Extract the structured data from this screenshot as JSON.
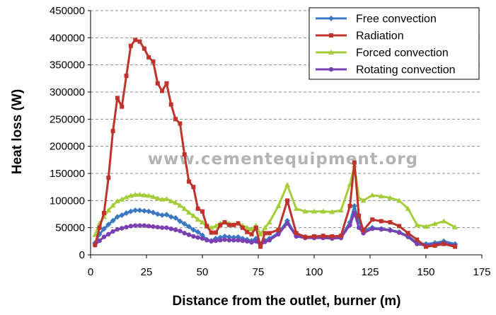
{
  "chart_data": {
    "type": "line",
    "title": "",
    "xlabel": "Distance from the outlet, burner (m)",
    "ylabel": "Heat loss (W)",
    "xlim": [
      0,
      175
    ],
    "ylim": [
      0,
      450000
    ],
    "xticks": [
      "0",
      "25",
      "50",
      "75",
      "100",
      "125",
      "150",
      "175"
    ],
    "yticks": [
      "0",
      "50000",
      "100000",
      "150000",
      "200000",
      "250000",
      "300000",
      "350000",
      "400000",
      "450000"
    ],
    "grid": "horizontal dashed",
    "legend_position": "top-right",
    "watermark": "www.cementequipment.org",
    "series": [
      {
        "name": "Free convection",
        "color": "#3b78c4",
        "marker": "diamond",
        "x": [
          2,
          4,
          6,
          8,
          10,
          12,
          14,
          16,
          18,
          20,
          22,
          24,
          26,
          28,
          30,
          32,
          34,
          36,
          38,
          40,
          42,
          44,
          46,
          48,
          50,
          52,
          54,
          56,
          58,
          60,
          62,
          64,
          66,
          68,
          70,
          72,
          74,
          76,
          78,
          80,
          84,
          88,
          92,
          96,
          100,
          104,
          108,
          112,
          116,
          118,
          120,
          122,
          126,
          130,
          134,
          138,
          142,
          146,
          150,
          154,
          158,
          163
        ],
        "y": [
          22000,
          38000,
          48000,
          56000,
          63000,
          70000,
          73000,
          77000,
          80000,
          82000,
          82000,
          81000,
          80000,
          78000,
          75000,
          73000,
          74000,
          70000,
          68000,
          62000,
          57000,
          52000,
          46000,
          42000,
          36000,
          28000,
          26000,
          30000,
          32000,
          34000,
          33000,
          32000,
          33000,
          30000,
          28000,
          26000,
          30000,
          20000,
          26000,
          30000,
          40000,
          63000,
          35000,
          33000,
          33000,
          33000,
          32000,
          33000,
          60000,
          90000,
          62000,
          45000,
          50000,
          48000,
          46000,
          42000,
          35000,
          22000,
          20000,
          22000,
          25000,
          20000
        ]
      },
      {
        "name": "Radiation",
        "color": "#c0332d",
        "marker": "square",
        "x": [
          2,
          4,
          6,
          8,
          10,
          12,
          14,
          16,
          18,
          20,
          22,
          24,
          26,
          28,
          30,
          32,
          34,
          36,
          38,
          40,
          42,
          44,
          46,
          48,
          50,
          52,
          54,
          56,
          58,
          60,
          62,
          64,
          66,
          68,
          70,
          72,
          74,
          76,
          78,
          80,
          84,
          88,
          92,
          96,
          100,
          104,
          108,
          112,
          116,
          118,
          120,
          122,
          126,
          130,
          134,
          138,
          142,
          146,
          150,
          154,
          158,
          163
        ],
        "y": [
          18000,
          50000,
          77000,
          142000,
          228000,
          289000,
          273000,
          330000,
          385000,
          396000,
          393000,
          380000,
          364000,
          356000,
          316000,
          302000,
          316000,
          277000,
          250000,
          242000,
          185000,
          135000,
          125000,
          85000,
          80000,
          53000,
          41000,
          41000,
          55000,
          60000,
          55000,
          55000,
          58000,
          50000,
          42000,
          38000,
          50000,
          15000,
          40000,
          40000,
          46000,
          100000,
          40000,
          33000,
          34000,
          35000,
          34000,
          35000,
          90000,
          170000,
          72000,
          45000,
          65000,
          62000,
          60000,
          53000,
          40000,
          28000,
          15000,
          17000,
          20000,
          15000
        ]
      },
      {
        "name": "Forced convection",
        "color": "#a4cd3a",
        "marker": "triangle",
        "x": [
          2,
          4,
          6,
          8,
          10,
          12,
          14,
          16,
          18,
          20,
          22,
          24,
          26,
          28,
          30,
          32,
          34,
          36,
          38,
          40,
          42,
          44,
          46,
          48,
          50,
          52,
          54,
          56,
          58,
          60,
          62,
          64,
          66,
          68,
          70,
          72,
          74,
          76,
          78,
          80,
          84,
          88,
          92,
          96,
          100,
          104,
          108,
          112,
          116,
          118,
          120,
          122,
          126,
          130,
          134,
          138,
          142,
          146,
          150,
          154,
          158,
          163
        ],
        "y": [
          37000,
          58000,
          70000,
          82000,
          91000,
          99000,
          102000,
          106000,
          109000,
          111000,
          111000,
          110000,
          109000,
          107000,
          104000,
          102000,
          103000,
          99000,
          96000,
          91000,
          85000,
          78000,
          72000,
          65000,
          60000,
          52000,
          50000,
          53000,
          58000,
          60000,
          58000,
          56000,
          58000,
          54000,
          50000,
          47000,
          54000,
          38000,
          50000,
          60000,
          90000,
          129000,
          85000,
          80000,
          80000,
          80000,
          79000,
          82000,
          130000,
          165000,
          105000,
          100000,
          110000,
          108000,
          105000,
          100000,
          85000,
          55000,
          52000,
          57000,
          62000,
          51000
        ]
      },
      {
        "name": "Rotating convection",
        "color": "#7a3fb0",
        "marker": "circle",
        "x": [
          2,
          4,
          6,
          8,
          10,
          12,
          14,
          16,
          18,
          20,
          22,
          24,
          26,
          28,
          30,
          32,
          34,
          36,
          38,
          40,
          42,
          44,
          46,
          48,
          50,
          52,
          54,
          56,
          58,
          60,
          62,
          64,
          66,
          68,
          70,
          72,
          74,
          76,
          78,
          80,
          84,
          88,
          92,
          96,
          100,
          104,
          108,
          112,
          116,
          118,
          120,
          122,
          126,
          130,
          134,
          138,
          142,
          146,
          150,
          154,
          158,
          163
        ],
        "y": [
          18000,
          26000,
          33000,
          38000,
          43000,
          47000,
          49000,
          51000,
          53000,
          54000,
          54000,
          54000,
          53000,
          52000,
          51000,
          50000,
          50000,
          48000,
          46000,
          44000,
          40000,
          37000,
          34000,
          32000,
          30000,
          27000,
          25000,
          26000,
          27000,
          28000,
          27000,
          27000,
          27000,
          26000,
          25000,
          23000,
          25000,
          18000,
          24000,
          27000,
          38000,
          58000,
          34000,
          31000,
          31000,
          31000,
          30000,
          31000,
          55000,
          77000,
          50000,
          40000,
          48000,
          47000,
          45000,
          41000,
          33000,
          20000,
          17000,
          19000,
          22000,
          17000
        ]
      }
    ]
  }
}
